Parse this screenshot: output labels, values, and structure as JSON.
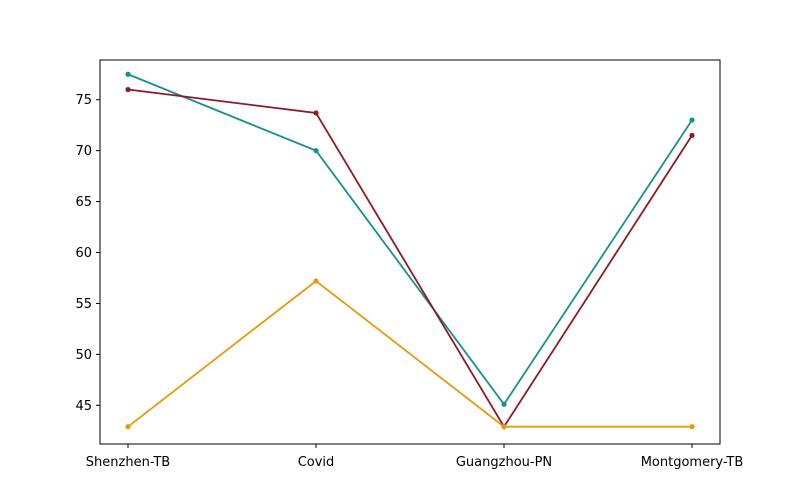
{
  "chart_data": {
    "type": "line",
    "title": "",
    "xlabel": "",
    "ylabel": "",
    "categories": [
      "Shenzhen-TB",
      "Covid",
      "Guangzhou-PN",
      "Montgomery-TB"
    ],
    "ylim": [
      41.2,
      78.9
    ],
    "yticks": [
      45,
      50,
      55,
      60,
      65,
      70,
      75
    ],
    "grid": false,
    "series": [
      {
        "color": "#17918f",
        "values": [
          77.5,
          70.0,
          45.1,
          73.0
        ]
      },
      {
        "color": "#8c1c23",
        "values": [
          76.0,
          73.7,
          42.9,
          71.5
        ]
      },
      {
        "color": "#e89a0c",
        "values": [
          42.9,
          57.2,
          42.9,
          42.9
        ]
      }
    ]
  }
}
